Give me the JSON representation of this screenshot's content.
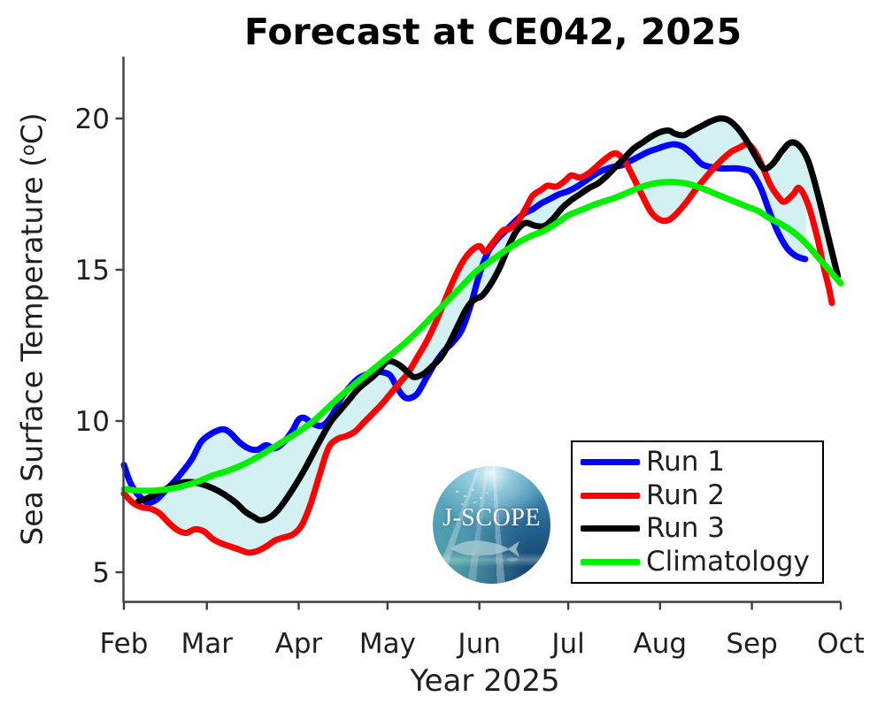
{
  "title": "Forecast at CE042, 2025",
  "axes": {
    "ylabel_prefix": "Sea Surface Temperature (",
    "ylabel_sup": "o",
    "ylabel_suffix": "C)",
    "xlabel": "Year 2025"
  },
  "logo": {
    "text": "J-SCOPE"
  },
  "chart_data": {
    "type": "line",
    "title": "Forecast at CE042, 2025",
    "xlabel": "Year 2025",
    "ylabel": "Sea Surface Temperature (°C)",
    "x_unit": "days since Feb 1, 2025",
    "xlim": [
      0,
      242
    ],
    "ylim": [
      4.0,
      22.05
    ],
    "grid": false,
    "legend_position": "inside lower right",
    "x_ticks": {
      "days": [
        0,
        28,
        59,
        89,
        120,
        150,
        181,
        212,
        242
      ],
      "labels": [
        "Feb",
        "Mar",
        "Apr",
        "May",
        "Jun",
        "Jul",
        "Aug",
        "Sep",
        "Oct"
      ]
    },
    "y_ticks": [
      5,
      10,
      15,
      20
    ],
    "envelope_fill_color": "#d3f1f2",
    "axis_color": "#3f3f3f",
    "series": [
      {
        "name": "Run 1",
        "color": "#0000ff",
        "in_envelope": true,
        "points": [
          [
            0,
            8.55
          ],
          [
            2,
            8.0
          ],
          [
            4,
            7.65
          ],
          [
            6,
            7.45
          ],
          [
            8,
            7.3
          ],
          [
            11,
            7.4
          ],
          [
            14,
            7.7
          ],
          [
            17,
            8.0
          ],
          [
            20,
            8.35
          ],
          [
            23,
            8.75
          ],
          [
            26,
            9.3
          ],
          [
            29,
            9.55
          ],
          [
            32,
            9.7
          ],
          [
            34,
            9.72
          ],
          [
            36,
            9.6
          ],
          [
            39,
            9.3
          ],
          [
            42,
            9.1
          ],
          [
            45,
            9.05
          ],
          [
            48,
            9.2
          ],
          [
            51,
            9.1
          ],
          [
            54,
            9.3
          ],
          [
            57,
            9.7
          ],
          [
            59,
            10.05
          ],
          [
            61,
            10.1
          ],
          [
            64,
            9.9
          ],
          [
            67,
            9.85
          ],
          [
            70,
            10.15
          ],
          [
            73,
            10.7
          ],
          [
            76,
            11.1
          ],
          [
            79,
            11.4
          ],
          [
            82,
            11.55
          ],
          [
            85,
            11.62
          ],
          [
            88,
            11.6
          ],
          [
            90,
            11.5
          ],
          [
            92,
            11.15
          ],
          [
            94,
            10.85
          ],
          [
            96,
            10.75
          ],
          [
            99,
            10.9
          ],
          [
            102,
            11.4
          ],
          [
            105,
            11.9
          ],
          [
            108,
            12.3
          ],
          [
            111,
            12.6
          ],
          [
            114,
            13.0
          ],
          [
            117,
            13.8
          ],
          [
            120,
            14.85
          ],
          [
            123,
            15.6
          ],
          [
            126,
            16.0
          ],
          [
            129,
            16.3
          ],
          [
            132,
            16.6
          ],
          [
            135,
            16.85
          ],
          [
            138,
            17.0
          ],
          [
            141,
            17.2
          ],
          [
            144,
            17.35
          ],
          [
            147,
            17.5
          ],
          [
            150,
            17.6
          ],
          [
            153,
            17.75
          ],
          [
            156,
            17.95
          ],
          [
            159,
            18.15
          ],
          [
            162,
            18.3
          ],
          [
            165,
            18.4
          ],
          [
            168,
            18.45
          ],
          [
            171,
            18.6
          ],
          [
            174,
            18.75
          ],
          [
            177,
            18.9
          ],
          [
            180,
            19.0
          ],
          [
            183,
            19.1
          ],
          [
            186,
            19.15
          ],
          [
            189,
            19.05
          ],
          [
            192,
            18.8
          ],
          [
            195,
            18.5
          ],
          [
            198,
            18.4
          ],
          [
            201,
            18.35
          ],
          [
            204,
            18.35
          ],
          [
            207,
            18.35
          ],
          [
            210,
            18.3
          ],
          [
            212,
            18.2
          ],
          [
            215,
            17.7
          ],
          [
            218,
            16.9
          ],
          [
            221,
            16.2
          ],
          [
            224,
            15.7
          ],
          [
            227,
            15.45
          ],
          [
            230,
            15.35
          ]
        ]
      },
      {
        "name": "Run 2",
        "color": "#ff0000",
        "in_envelope": true,
        "points": [
          [
            0,
            7.6
          ],
          [
            3,
            7.3
          ],
          [
            6,
            7.15
          ],
          [
            9,
            7.1
          ],
          [
            12,
            6.95
          ],
          [
            15,
            6.65
          ],
          [
            18,
            6.4
          ],
          [
            21,
            6.3
          ],
          [
            24,
            6.42
          ],
          [
            27,
            6.35
          ],
          [
            30,
            6.1
          ],
          [
            33,
            5.95
          ],
          [
            36,
            5.85
          ],
          [
            39,
            5.75
          ],
          [
            42,
            5.65
          ],
          [
            45,
            5.7
          ],
          [
            48,
            5.85
          ],
          [
            51,
            6.05
          ],
          [
            54,
            6.15
          ],
          [
            57,
            6.25
          ],
          [
            60,
            6.55
          ],
          [
            63,
            7.25
          ],
          [
            66,
            8.2
          ],
          [
            69,
            9.1
          ],
          [
            72,
            9.4
          ],
          [
            75,
            9.5
          ],
          [
            78,
            9.65
          ],
          [
            81,
            9.95
          ],
          [
            84,
            10.25
          ],
          [
            87,
            10.55
          ],
          [
            90,
            10.9
          ],
          [
            93,
            11.25
          ],
          [
            96,
            11.6
          ],
          [
            99,
            12.1
          ],
          [
            102,
            12.6
          ],
          [
            105,
            13.2
          ],
          [
            108,
            13.9
          ],
          [
            111,
            14.6
          ],
          [
            114,
            15.2
          ],
          [
            117,
            15.6
          ],
          [
            120,
            15.78
          ],
          [
            122,
            15.6
          ],
          [
            125,
            15.95
          ],
          [
            128,
            16.3
          ],
          [
            130,
            16.35
          ],
          [
            133,
            16.6
          ],
          [
            136,
            17.1
          ],
          [
            138,
            17.45
          ],
          [
            141,
            17.65
          ],
          [
            143,
            17.78
          ],
          [
            146,
            17.75
          ],
          [
            149,
            17.95
          ],
          [
            151,
            18.12
          ],
          [
            154,
            18.05
          ],
          [
            157,
            18.2
          ],
          [
            160,
            18.45
          ],
          [
            163,
            18.7
          ],
          [
            166,
            18.85
          ],
          [
            169,
            18.6
          ],
          [
            172,
            18.05
          ],
          [
            175,
            17.45
          ],
          [
            178,
            16.9
          ],
          [
            181,
            16.65
          ],
          [
            184,
            16.65
          ],
          [
            187,
            16.9
          ],
          [
            190,
            17.25
          ],
          [
            193,
            17.65
          ],
          [
            196,
            18.0
          ],
          [
            199,
            18.35
          ],
          [
            202,
            18.65
          ],
          [
            205,
            18.9
          ],
          [
            208,
            19.05
          ],
          [
            210,
            19.15
          ],
          [
            212,
            19.05
          ],
          [
            215,
            18.55
          ],
          [
            218,
            17.85
          ],
          [
            221,
            17.4
          ],
          [
            223,
            17.25
          ],
          [
            226,
            17.5
          ],
          [
            228,
            17.7
          ],
          [
            231,
            17.15
          ],
          [
            234,
            16.1
          ],
          [
            236,
            15.2
          ],
          [
            238,
            14.4
          ],
          [
            239,
            13.9
          ]
        ]
      },
      {
        "name": "Run 3",
        "color": "#000000",
        "in_envelope": true,
        "points": [
          [
            5,
            7.35
          ],
          [
            8,
            7.45
          ],
          [
            11,
            7.6
          ],
          [
            14,
            7.75
          ],
          [
            17,
            7.9
          ],
          [
            20,
            7.97
          ],
          [
            23,
            7.98
          ],
          [
            26,
            7.92
          ],
          [
            29,
            7.82
          ],
          [
            32,
            7.68
          ],
          [
            35,
            7.5
          ],
          [
            38,
            7.28
          ],
          [
            41,
            7.0
          ],
          [
            44,
            6.82
          ],
          [
            46,
            6.72
          ],
          [
            49,
            6.8
          ],
          [
            52,
            7.05
          ],
          [
            55,
            7.45
          ],
          [
            58,
            7.9
          ],
          [
            61,
            8.4
          ],
          [
            64,
            8.95
          ],
          [
            67,
            9.5
          ],
          [
            70,
            10.0
          ],
          [
            73,
            10.35
          ],
          [
            76,
            10.7
          ],
          [
            79,
            11.05
          ],
          [
            82,
            11.3
          ],
          [
            85,
            11.55
          ],
          [
            88,
            11.9
          ],
          [
            90,
            11.98
          ],
          [
            93,
            11.85
          ],
          [
            96,
            11.6
          ],
          [
            98,
            11.45
          ],
          [
            101,
            11.55
          ],
          [
            104,
            11.8
          ],
          [
            107,
            12.1
          ],
          [
            110,
            12.6
          ],
          [
            113,
            13.2
          ],
          [
            115,
            13.6
          ],
          [
            117,
            13.9
          ],
          [
            119,
            14.05
          ],
          [
            121,
            14.15
          ],
          [
            124,
            14.55
          ],
          [
            127,
            15.1
          ],
          [
            130,
            15.8
          ],
          [
            132,
            16.2
          ],
          [
            134,
            16.45
          ],
          [
            136,
            16.55
          ],
          [
            139,
            16.45
          ],
          [
            142,
            16.45
          ],
          [
            145,
            16.7
          ],
          [
            148,
            17.05
          ],
          [
            151,
            17.3
          ],
          [
            154,
            17.5
          ],
          [
            157,
            17.7
          ],
          [
            160,
            17.85
          ],
          [
            163,
            18.1
          ],
          [
            166,
            18.4
          ],
          [
            169,
            18.7
          ],
          [
            172,
            19.0
          ],
          [
            175,
            19.2
          ],
          [
            178,
            19.4
          ],
          [
            181,
            19.55
          ],
          [
            184,
            19.6
          ],
          [
            186,
            19.5
          ],
          [
            189,
            19.45
          ],
          [
            192,
            19.6
          ],
          [
            195,
            19.75
          ],
          [
            198,
            19.9
          ],
          [
            201,
            20.0
          ],
          [
            204,
            19.95
          ],
          [
            207,
            19.7
          ],
          [
            210,
            19.3
          ],
          [
            213,
            18.8
          ],
          [
            216,
            18.35
          ],
          [
            219,
            18.5
          ],
          [
            222,
            18.9
          ],
          [
            225,
            19.2
          ],
          [
            228,
            19.1
          ],
          [
            231,
            18.6
          ],
          [
            234,
            17.6
          ],
          [
            237,
            16.4
          ],
          [
            239,
            15.6
          ],
          [
            241,
            14.8
          ]
        ]
      },
      {
        "name": "Climatology",
        "color": "#00f000",
        "in_envelope": false,
        "points": [
          [
            0,
            7.75
          ],
          [
            5,
            7.7
          ],
          [
            10,
            7.7
          ],
          [
            15,
            7.75
          ],
          [
            20,
            7.85
          ],
          [
            25,
            8.0
          ],
          [
            30,
            8.2
          ],
          [
            35,
            8.35
          ],
          [
            40,
            8.55
          ],
          [
            45,
            8.8
          ],
          [
            50,
            9.1
          ],
          [
            55,
            9.4
          ],
          [
            59,
            9.65
          ],
          [
            64,
            10.0
          ],
          [
            69,
            10.45
          ],
          [
            74,
            10.9
          ],
          [
            79,
            11.3
          ],
          [
            84,
            11.7
          ],
          [
            89,
            12.1
          ],
          [
            94,
            12.5
          ],
          [
            99,
            12.95
          ],
          [
            104,
            13.45
          ],
          [
            109,
            13.95
          ],
          [
            114,
            14.45
          ],
          [
            119,
            14.95
          ],
          [
            124,
            15.3
          ],
          [
            129,
            15.65
          ],
          [
            134,
            15.95
          ],
          [
            137,
            16.1
          ],
          [
            142,
            16.3
          ],
          [
            147,
            16.6
          ],
          [
            150,
            16.8
          ],
          [
            155,
            17.0
          ],
          [
            160,
            17.2
          ],
          [
            165,
            17.35
          ],
          [
            170,
            17.55
          ],
          [
            175,
            17.75
          ],
          [
            180,
            17.87
          ],
          [
            185,
            17.9
          ],
          [
            190,
            17.85
          ],
          [
            195,
            17.7
          ],
          [
            200,
            17.5
          ],
          [
            205,
            17.3
          ],
          [
            210,
            17.1
          ],
          [
            214,
            16.95
          ],
          [
            218,
            16.7
          ],
          [
            222,
            16.5
          ],
          [
            226,
            16.25
          ],
          [
            230,
            15.9
          ],
          [
            234,
            15.45
          ],
          [
            238,
            15.0
          ],
          [
            242,
            14.55
          ]
        ]
      }
    ]
  }
}
